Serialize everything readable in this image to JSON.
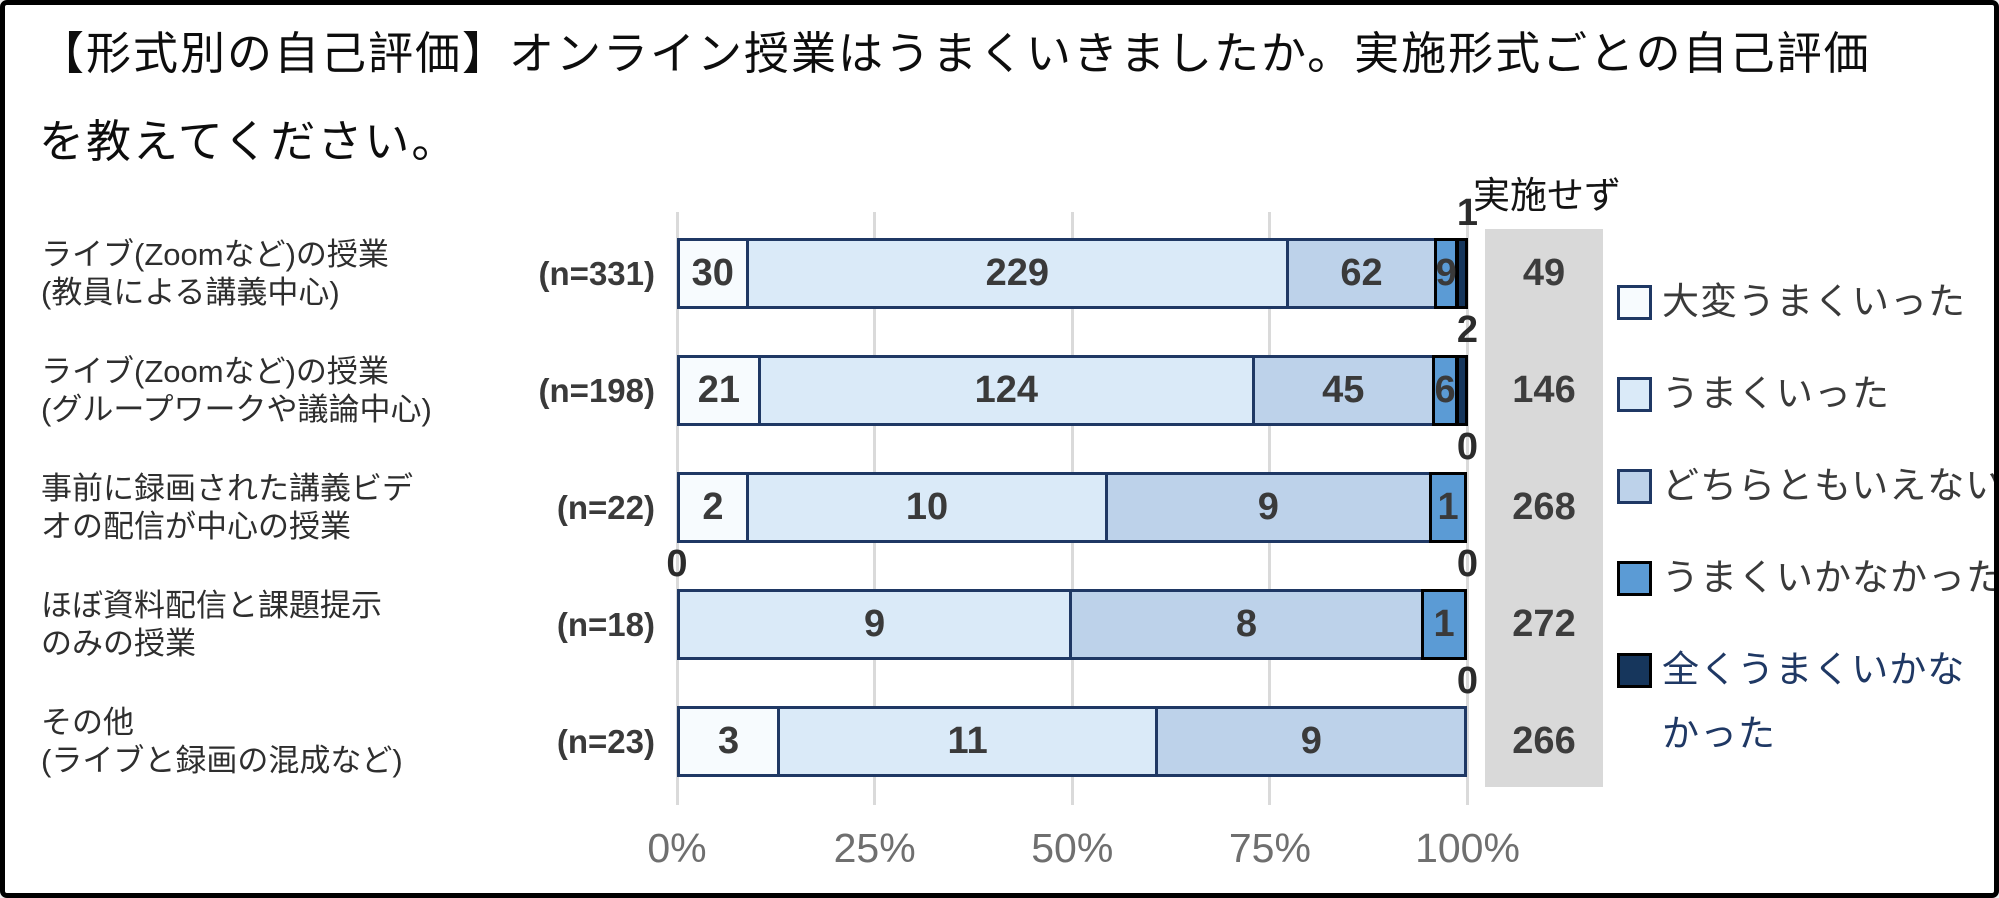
{
  "title": {
    "line1": "【形式別の自己評価】オンライン授業はうまくいきましたか。実施形式ごとの自己評価",
    "line2": "を教えてください。"
  },
  "not_conducted_header": "実施せず",
  "legend": [
    {
      "label": "大変うまくいった",
      "display_lines": [
        "大変うまくいった"
      ],
      "fill": "#f7fbfe",
      "border": "#1f3864",
      "text_color": "#3a3a3a"
    },
    {
      "label": "うまくいった",
      "display_lines": [
        "うまくいった"
      ],
      "fill": "#daeaf8",
      "border": "#1f3864",
      "text_color": "#3a3a3a"
    },
    {
      "label": "どちらともいえない",
      "display_lines": [
        "どちらともいえない"
      ],
      "fill": "#bdd2ea",
      "border": "#1f3864",
      "text_color": "#3a3a3a"
    },
    {
      "label": "うまくいかなかった",
      "display_lines": [
        "うまくいかなかった"
      ],
      "fill": "#5b9bd5",
      "border": "#000000",
      "text_color": "#3a3a3a"
    },
    {
      "label": "全くうまくいかなかった",
      "display_lines": [
        "全くうまくいかな",
        "かった"
      ],
      "fill": "#16365c",
      "border": "#000000",
      "text_color": "#1f3864"
    }
  ],
  "chart_data": {
    "type": "bar",
    "variant": "horizontal-100pct-stacked",
    "x_ticks": [
      "0%",
      "25%",
      "50%",
      "75%",
      "100%"
    ],
    "series": [
      {
        "name": "大変うまくいった",
        "fill": "#f7fbfe",
        "border": "#1f3864",
        "values": [
          30,
          21,
          2,
          0,
          3
        ]
      },
      {
        "name": "うまくいった",
        "fill": "#daeaf8",
        "border": "#1f3864",
        "values": [
          229,
          124,
          10,
          9,
          11
        ]
      },
      {
        "name": "どちらともいえない",
        "fill": "#bdd2ea",
        "border": "#1f3864",
        "values": [
          62,
          45,
          9,
          8,
          9
        ]
      },
      {
        "name": "うまくいかなかった",
        "fill": "#5b9bd5",
        "border": "#000000",
        "values": [
          9,
          6,
          1,
          1,
          0
        ]
      },
      {
        "name": "全くうまくいかなかった",
        "fill": "#16365c",
        "border": "#000000",
        "values": [
          1,
          2,
          0,
          0,
          0
        ]
      }
    ],
    "not_conducted": {
      "label": "実施せず",
      "values": [
        49,
        146,
        268,
        272,
        266
      ]
    },
    "rows": [
      {
        "label_lines": [
          "ライブ(Zoomなど)の授業",
          "(教員による講義中心)"
        ],
        "n_label": "(n=331)",
        "n": 331,
        "values": [
          30,
          229,
          62,
          9,
          1
        ],
        "inside_labels": [
          "30",
          "229",
          "62",
          "9",
          ""
        ],
        "above_left": "",
        "above_right": "1",
        "not_conducted": "49"
      },
      {
        "label_lines": [
          "ライブ(Zoomなど)の授業",
          "(グループワークや議論中心)"
        ],
        "n_label": "(n=198)",
        "n": 198,
        "values": [
          21,
          124,
          45,
          6,
          2
        ],
        "inside_labels": [
          "21",
          "124",
          "45",
          "6",
          ""
        ],
        "above_left": "",
        "above_right": "2",
        "not_conducted": "146"
      },
      {
        "label_lines": [
          "事前に録画された講義ビデ",
          "オの配信が中心の授業"
        ],
        "n_label": "(n=22)",
        "n": 22,
        "values": [
          2,
          10,
          9,
          1,
          0
        ],
        "inside_labels": [
          "2",
          "10",
          "9",
          "1",
          ""
        ],
        "above_left": "",
        "above_right": "0",
        "not_conducted": "268"
      },
      {
        "label_lines": [
          "ほぼ資料配信と課題提示",
          "のみの授業"
        ],
        "n_label": "(n=18)",
        "n": 18,
        "values": [
          0,
          9,
          8,
          1,
          0
        ],
        "inside_labels": [
          "",
          "9",
          "8",
          "1",
          ""
        ],
        "above_left": "0",
        "above_right": "0",
        "not_conducted": "272"
      },
      {
        "label_lines": [
          "その他",
          "(ライブと録画の混成など)"
        ],
        "n_label": "(n=23)",
        "n": 23,
        "values": [
          3,
          11,
          9,
          0,
          0
        ],
        "inside_labels": [
          "3",
          "11",
          "9",
          "",
          ""
        ],
        "above_left": "",
        "above_right": "0",
        "not_conducted": "266"
      }
    ]
  }
}
